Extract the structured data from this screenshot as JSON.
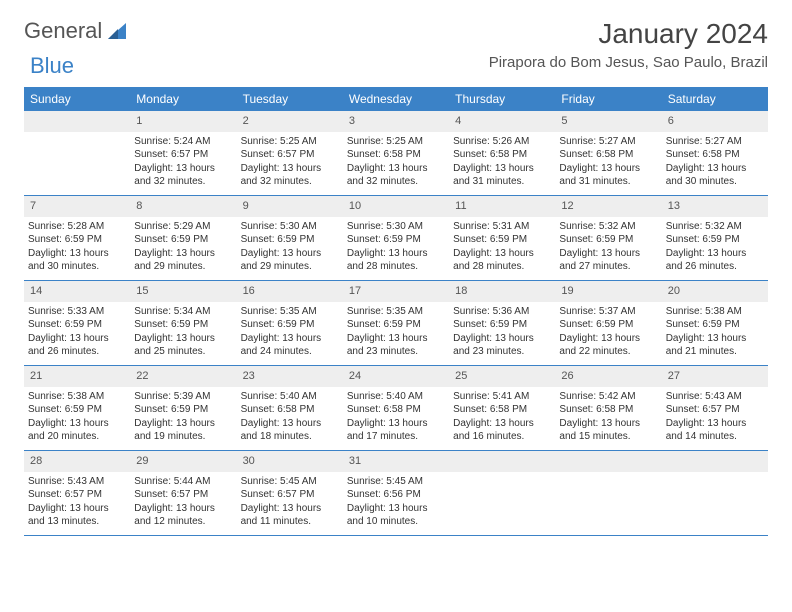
{
  "logo": {
    "text1": "General",
    "text2": "Blue"
  },
  "title": "January 2024",
  "location": "Pirapora do Bom Jesus, Sao Paulo, Brazil",
  "colors": {
    "header_bg": "#3b82c7",
    "header_text": "#ffffff",
    "daynum_bg": "#eeeeee",
    "week_border": "#3b82c7",
    "body_text": "#333333",
    "title_text": "#444444"
  },
  "day_names": [
    "Sunday",
    "Monday",
    "Tuesday",
    "Wednesday",
    "Thursday",
    "Friday",
    "Saturday"
  ],
  "weeks": [
    [
      {
        "day": "",
        "sunrise": "",
        "sunset": "",
        "daylight": ""
      },
      {
        "day": "1",
        "sunrise": "Sunrise: 5:24 AM",
        "sunset": "Sunset: 6:57 PM",
        "daylight": "Daylight: 13 hours and 32 minutes."
      },
      {
        "day": "2",
        "sunrise": "Sunrise: 5:25 AM",
        "sunset": "Sunset: 6:57 PM",
        "daylight": "Daylight: 13 hours and 32 minutes."
      },
      {
        "day": "3",
        "sunrise": "Sunrise: 5:25 AM",
        "sunset": "Sunset: 6:58 PM",
        "daylight": "Daylight: 13 hours and 32 minutes."
      },
      {
        "day": "4",
        "sunrise": "Sunrise: 5:26 AM",
        "sunset": "Sunset: 6:58 PM",
        "daylight": "Daylight: 13 hours and 31 minutes."
      },
      {
        "day": "5",
        "sunrise": "Sunrise: 5:27 AM",
        "sunset": "Sunset: 6:58 PM",
        "daylight": "Daylight: 13 hours and 31 minutes."
      },
      {
        "day": "6",
        "sunrise": "Sunrise: 5:27 AM",
        "sunset": "Sunset: 6:58 PM",
        "daylight": "Daylight: 13 hours and 30 minutes."
      }
    ],
    [
      {
        "day": "7",
        "sunrise": "Sunrise: 5:28 AM",
        "sunset": "Sunset: 6:59 PM",
        "daylight": "Daylight: 13 hours and 30 minutes."
      },
      {
        "day": "8",
        "sunrise": "Sunrise: 5:29 AM",
        "sunset": "Sunset: 6:59 PM",
        "daylight": "Daylight: 13 hours and 29 minutes."
      },
      {
        "day": "9",
        "sunrise": "Sunrise: 5:30 AM",
        "sunset": "Sunset: 6:59 PM",
        "daylight": "Daylight: 13 hours and 29 minutes."
      },
      {
        "day": "10",
        "sunrise": "Sunrise: 5:30 AM",
        "sunset": "Sunset: 6:59 PM",
        "daylight": "Daylight: 13 hours and 28 minutes."
      },
      {
        "day": "11",
        "sunrise": "Sunrise: 5:31 AM",
        "sunset": "Sunset: 6:59 PM",
        "daylight": "Daylight: 13 hours and 28 minutes."
      },
      {
        "day": "12",
        "sunrise": "Sunrise: 5:32 AM",
        "sunset": "Sunset: 6:59 PM",
        "daylight": "Daylight: 13 hours and 27 minutes."
      },
      {
        "day": "13",
        "sunrise": "Sunrise: 5:32 AM",
        "sunset": "Sunset: 6:59 PM",
        "daylight": "Daylight: 13 hours and 26 minutes."
      }
    ],
    [
      {
        "day": "14",
        "sunrise": "Sunrise: 5:33 AM",
        "sunset": "Sunset: 6:59 PM",
        "daylight": "Daylight: 13 hours and 26 minutes."
      },
      {
        "day": "15",
        "sunrise": "Sunrise: 5:34 AM",
        "sunset": "Sunset: 6:59 PM",
        "daylight": "Daylight: 13 hours and 25 minutes."
      },
      {
        "day": "16",
        "sunrise": "Sunrise: 5:35 AM",
        "sunset": "Sunset: 6:59 PM",
        "daylight": "Daylight: 13 hours and 24 minutes."
      },
      {
        "day": "17",
        "sunrise": "Sunrise: 5:35 AM",
        "sunset": "Sunset: 6:59 PM",
        "daylight": "Daylight: 13 hours and 23 minutes."
      },
      {
        "day": "18",
        "sunrise": "Sunrise: 5:36 AM",
        "sunset": "Sunset: 6:59 PM",
        "daylight": "Daylight: 13 hours and 23 minutes."
      },
      {
        "day": "19",
        "sunrise": "Sunrise: 5:37 AM",
        "sunset": "Sunset: 6:59 PM",
        "daylight": "Daylight: 13 hours and 22 minutes."
      },
      {
        "day": "20",
        "sunrise": "Sunrise: 5:38 AM",
        "sunset": "Sunset: 6:59 PM",
        "daylight": "Daylight: 13 hours and 21 minutes."
      }
    ],
    [
      {
        "day": "21",
        "sunrise": "Sunrise: 5:38 AM",
        "sunset": "Sunset: 6:59 PM",
        "daylight": "Daylight: 13 hours and 20 minutes."
      },
      {
        "day": "22",
        "sunrise": "Sunrise: 5:39 AM",
        "sunset": "Sunset: 6:59 PM",
        "daylight": "Daylight: 13 hours and 19 minutes."
      },
      {
        "day": "23",
        "sunrise": "Sunrise: 5:40 AM",
        "sunset": "Sunset: 6:58 PM",
        "daylight": "Daylight: 13 hours and 18 minutes."
      },
      {
        "day": "24",
        "sunrise": "Sunrise: 5:40 AM",
        "sunset": "Sunset: 6:58 PM",
        "daylight": "Daylight: 13 hours and 17 minutes."
      },
      {
        "day": "25",
        "sunrise": "Sunrise: 5:41 AM",
        "sunset": "Sunset: 6:58 PM",
        "daylight": "Daylight: 13 hours and 16 minutes."
      },
      {
        "day": "26",
        "sunrise": "Sunrise: 5:42 AM",
        "sunset": "Sunset: 6:58 PM",
        "daylight": "Daylight: 13 hours and 15 minutes."
      },
      {
        "day": "27",
        "sunrise": "Sunrise: 5:43 AM",
        "sunset": "Sunset: 6:57 PM",
        "daylight": "Daylight: 13 hours and 14 minutes."
      }
    ],
    [
      {
        "day": "28",
        "sunrise": "Sunrise: 5:43 AM",
        "sunset": "Sunset: 6:57 PM",
        "daylight": "Daylight: 13 hours and 13 minutes."
      },
      {
        "day": "29",
        "sunrise": "Sunrise: 5:44 AM",
        "sunset": "Sunset: 6:57 PM",
        "daylight": "Daylight: 13 hours and 12 minutes."
      },
      {
        "day": "30",
        "sunrise": "Sunrise: 5:45 AM",
        "sunset": "Sunset: 6:57 PM",
        "daylight": "Daylight: 13 hours and 11 minutes."
      },
      {
        "day": "31",
        "sunrise": "Sunrise: 5:45 AM",
        "sunset": "Sunset: 6:56 PM",
        "daylight": "Daylight: 13 hours and 10 minutes."
      },
      {
        "day": "",
        "sunrise": "",
        "sunset": "",
        "daylight": ""
      },
      {
        "day": "",
        "sunrise": "",
        "sunset": "",
        "daylight": ""
      },
      {
        "day": "",
        "sunrise": "",
        "sunset": "",
        "daylight": ""
      }
    ]
  ]
}
